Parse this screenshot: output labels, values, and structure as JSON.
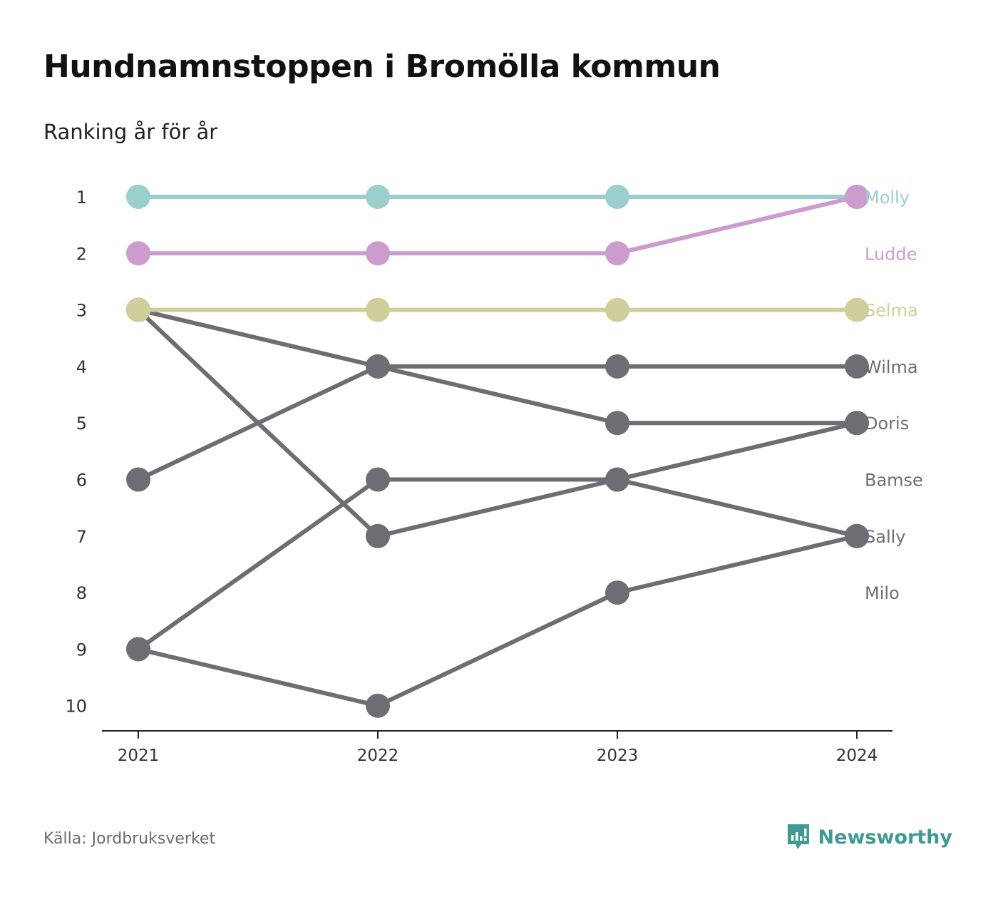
{
  "header": {
    "title": "Hundnamnstoppen i Bromölla kommun",
    "subtitle": "Ranking år för år"
  },
  "footer": {
    "source": "Källa: Jordbruksverket",
    "brand": "Newsworthy",
    "brand_icon": "newsworthy-logo-icon",
    "brand_color": "#3f9a93"
  },
  "chart_data": {
    "type": "line",
    "chart_style": "bump",
    "x": [
      "2021",
      "2022",
      "2023",
      "2024"
    ],
    "y_ticks": [
      "1",
      "2",
      "3",
      "4",
      "5",
      "6",
      "7",
      "8",
      "9",
      "10"
    ],
    "ylim": [
      1,
      10
    ],
    "y_inverted": true,
    "grid": false,
    "legend": "labels at line ends",
    "series": [
      {
        "name": "Molly",
        "values": [
          1,
          1,
          1,
          1
        ],
        "color": "#9acfcd"
      },
      {
        "name": "Ludde",
        "values": [
          2,
          2,
          2,
          1
        ],
        "color": "#cd9ccf"
      },
      {
        "name": "Selma",
        "values": [
          3,
          3,
          3,
          3
        ],
        "color": "#cfcf9b"
      },
      {
        "name": "Wilma",
        "values": [
          6,
          4,
          4,
          4
        ],
        "color": "#6e6d74"
      },
      {
        "name": "Doris",
        "values": [
          3,
          4,
          5,
          5
        ],
        "color": "#6e6d74"
      },
      {
        "name": "Bamse",
        "values": [
          9,
          6,
          6,
          7
        ],
        "color": "#6e6d74"
      },
      {
        "name": "Sally",
        "values": [
          3,
          7,
          6,
          5
        ],
        "color": "#6e6d74"
      },
      {
        "name": "Milo",
        "values": [
          9,
          10,
          8,
          7
        ],
        "color": "#6e6d74"
      }
    ],
    "end_labels": [
      {
        "text": "Molly",
        "rank": 1
      },
      {
        "text": "Ludde",
        "rank": 2
      },
      {
        "text": "Selma",
        "rank": 3
      },
      {
        "text": "Wilma",
        "rank": 4
      },
      {
        "text": "Doris",
        "rank": 5
      },
      {
        "text": "Bamse",
        "rank": 6
      },
      {
        "text": "Sally",
        "rank": 7
      },
      {
        "text": "Milo",
        "rank": 8
      }
    ]
  }
}
